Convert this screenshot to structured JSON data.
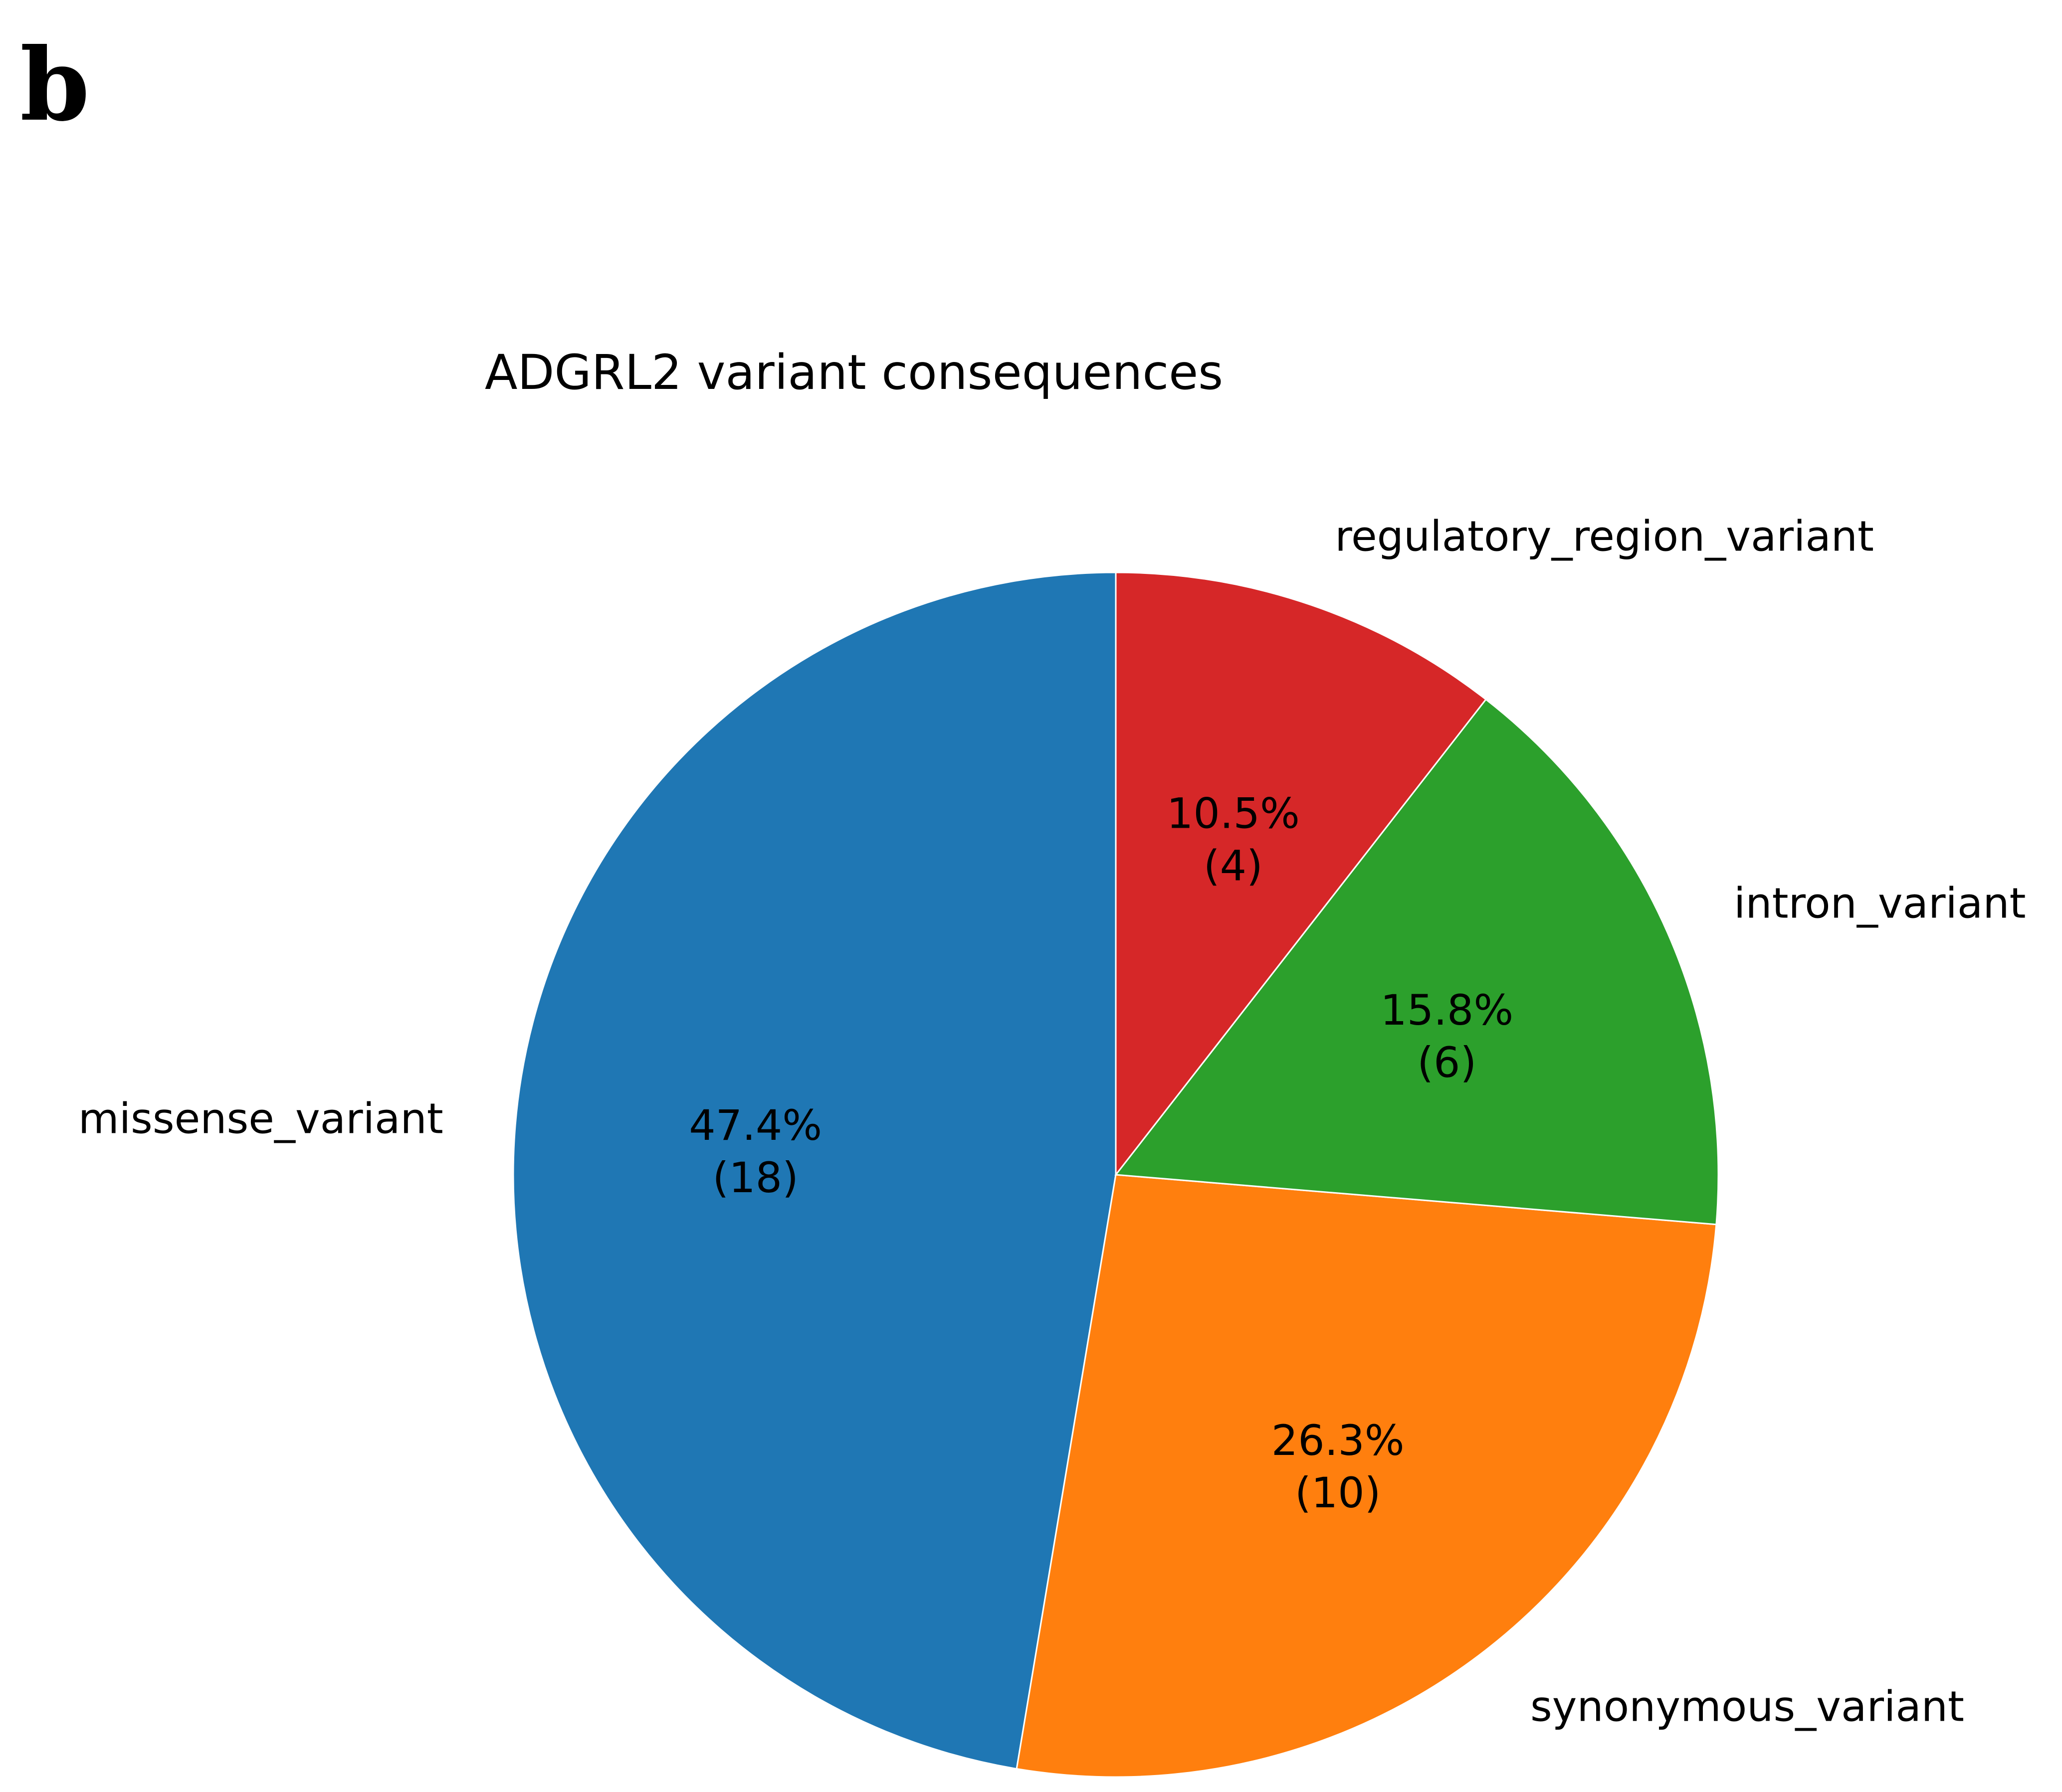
{
  "panel_label": "b",
  "chart_data": {
    "type": "pie",
    "title": "ADGRL2 variant consequences",
    "start_angle_deg": 90,
    "direction": "counterclockwise",
    "slices": [
      {
        "label": "missense_variant",
        "count": 18,
        "percent": 47.4,
        "pct_text": "47.4%",
        "count_text": "(18)",
        "color": "#1f77b4"
      },
      {
        "label": "synonymous_variant",
        "count": 10,
        "percent": 26.3,
        "pct_text": "26.3%",
        "count_text": "(10)",
        "color": "#ff7f0e"
      },
      {
        "label": "intron_variant",
        "count": 6,
        "percent": 15.8,
        "pct_text": "15.8%",
        "count_text": "(6)",
        "color": "#2ca02c"
      },
      {
        "label": "regulatory_region_variant",
        "count": 4,
        "percent": 10.5,
        "pct_text": "10.5%",
        "count_text": "(4)",
        "color": "#d62728"
      }
    ]
  }
}
